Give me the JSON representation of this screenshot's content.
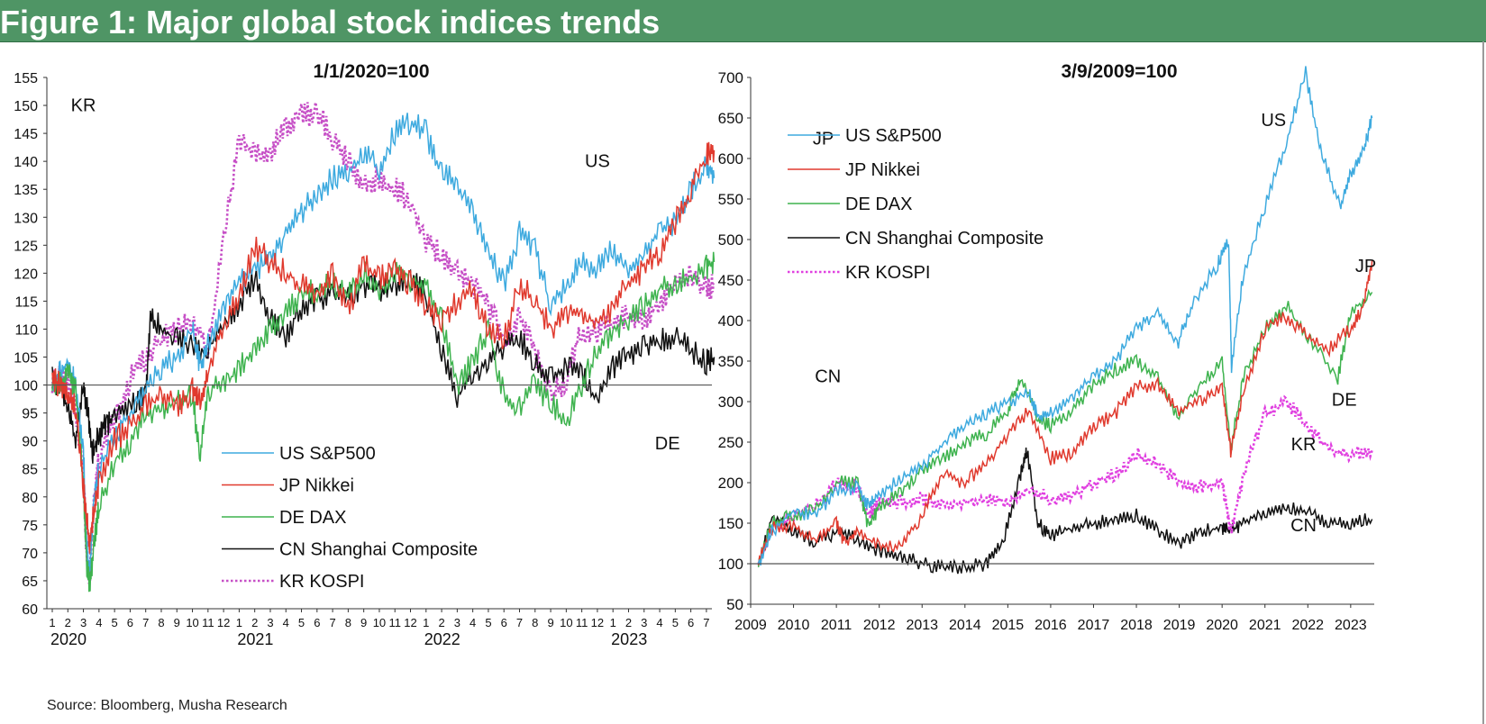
{
  "figure": {
    "title": "Figure 1: Major global stock indices trends",
    "source": "Source: Bloomberg, Musha Research",
    "header_color": "#4f9565"
  },
  "chart_data": [
    {
      "type": "line",
      "title": "1/1/2020=100",
      "xlabel": "",
      "ylabel": "",
      "ylim": [
        60,
        155
      ],
      "y_ticks": [
        60,
        65,
        70,
        75,
        80,
        85,
        90,
        95,
        100,
        105,
        110,
        115,
        120,
        125,
        130,
        135,
        140,
        145,
        150,
        155
      ],
      "x_month_labels": [
        "1",
        "2",
        "3",
        "4",
        "5",
        "6",
        "7",
        "8",
        "9",
        "10",
        "11",
        "12",
        "1",
        "2",
        "3",
        "4",
        "5",
        "6",
        "7",
        "8",
        "9",
        "10",
        "11",
        "12",
        "1",
        "2",
        "3",
        "4",
        "5",
        "6",
        "7",
        "8",
        "9",
        "10",
        "11",
        "12",
        "1",
        "2",
        "3",
        "4",
        "5",
        "6",
        "7"
      ],
      "x_year_labels": [
        {
          "label": "2020",
          "month_index": 0
        },
        {
          "label": "2021",
          "month_index": 12
        },
        {
          "label": "2022",
          "month_index": 24
        },
        {
          "label": "2023",
          "month_index": 36
        }
      ],
      "reference_line": 100,
      "legend_position": "bottom-center",
      "series": [
        {
          "name": "US S&P500",
          "color": "#3eaadf",
          "style": "solid",
          "x": [
            0,
            0.5,
            1,
            1.5,
            2,
            2.2,
            2.4,
            2.7,
            3,
            4,
            5,
            6,
            7,
            8,
            9,
            9.5,
            10,
            11,
            12,
            13,
            14,
            15,
            16,
            17,
            18,
            19,
            20,
            21,
            22,
            23,
            24,
            25,
            26,
            27,
            28,
            29,
            30,
            31,
            32,
            33,
            34,
            35,
            36,
            37,
            38,
            39,
            40,
            41,
            42,
            42.5
          ],
          "y": [
            101,
            102,
            104,
            100,
            88,
            72,
            66,
            80,
            85,
            91,
            95,
            99,
            103,
            105,
            110,
            103,
            107,
            114,
            118,
            121,
            122,
            127,
            131,
            134,
            137,
            138,
            141,
            139,
            145,
            147,
            145,
            138,
            136,
            131,
            124,
            118,
            127,
            124,
            114,
            118,
            122,
            121,
            124,
            121,
            124,
            127,
            129,
            135,
            139,
            137
          ]
        },
        {
          "name": "JP Nikkei",
          "color": "#e03a2e",
          "style": "solid",
          "x": [
            0,
            0.5,
            1,
            1.5,
            2,
            2.2,
            2.4,
            2.7,
            3,
            4,
            5,
            6,
            7,
            8,
            9,
            9.5,
            10,
            11,
            12,
            13,
            14,
            15,
            16,
            17,
            18,
            19,
            20,
            21,
            22,
            23,
            24,
            25,
            26,
            27,
            28,
            29,
            30,
            31,
            32,
            33,
            34,
            35,
            36,
            37,
            38,
            39,
            40,
            41,
            42,
            42.5
          ],
          "y": [
            101,
            100,
            98,
            96,
            82,
            76,
            72,
            78,
            83,
            90,
            93,
            96,
            98,
            96,
            99,
            97,
            102,
            111,
            116,
            125,
            122,
            120,
            118,
            116,
            120,
            113,
            122,
            119,
            121,
            118,
            114,
            112,
            115,
            117,
            110,
            108,
            118,
            115,
            110,
            112,
            113,
            111,
            114,
            118,
            121,
            124,
            129,
            135,
            141,
            142
          ]
        },
        {
          "name": "DE DAX",
          "color": "#3fb34f",
          "style": "solid",
          "x": [
            0,
            0.5,
            1,
            1.5,
            2,
            2.2,
            2.4,
            2.7,
            3,
            4,
            5,
            6,
            7,
            8,
            9,
            9.5,
            10,
            11,
            12,
            13,
            14,
            15,
            16,
            17,
            18,
            19,
            20,
            21,
            22,
            23,
            24,
            25,
            26,
            27,
            28,
            29,
            30,
            31,
            32,
            33,
            34,
            35,
            36,
            37,
            38,
            39,
            40,
            41,
            42,
            42.5
          ],
          "y": [
            101,
            100,
            102,
            99,
            82,
            68,
            64,
            72,
            78,
            86,
            90,
            95,
            96,
            97,
            98,
            87,
            99,
            100,
            103,
            106,
            110,
            113,
            116,
            117,
            118,
            116,
            120,
            117,
            120,
            119,
            117,
            112,
            100,
            104,
            110,
            98,
            96,
            100,
            97,
            93,
            100,
            106,
            110,
            112,
            114,
            117,
            118,
            119,
            121,
            122
          ]
        },
        {
          "name": "CN Shanghai Composite",
          "color": "#111111",
          "style": "solid",
          "x": [
            0,
            0.5,
            1,
            1.5,
            2,
            2.3,
            2.6,
            3,
            3.5,
            4,
            5,
            6,
            6.3,
            7,
            8,
            9,
            10,
            11,
            12,
            13,
            14,
            15,
            16,
            17,
            18,
            19,
            20,
            21,
            22,
            23,
            24,
            25,
            26,
            27,
            28,
            29,
            30,
            31,
            32,
            33,
            34,
            35,
            36,
            37,
            38,
            39,
            40,
            41,
            42,
            42.5
          ],
          "y": [
            101,
            100,
            96,
            90,
            100,
            95,
            88,
            91,
            93,
            95,
            96,
            98,
            112,
            110,
            108,
            107,
            106,
            111,
            114,
            119,
            112,
            109,
            114,
            115,
            117,
            116,
            118,
            117,
            118,
            119,
            116,
            106,
            98,
            102,
            104,
            107,
            108,
            104,
            101,
            103,
            102,
            97,
            103,
            105,
            107,
            108,
            109,
            106,
            104,
            105
          ]
        },
        {
          "name": "KR KOSPI",
          "color": "#c64fc6",
          "style": "dotted",
          "x": [
            0,
            0.5,
            1,
            1.5,
            2,
            2.2,
            2.4,
            2.7,
            3,
            4,
            5,
            6,
            7,
            8,
            9,
            10,
            11,
            12,
            13,
            14,
            15,
            16,
            17,
            18,
            19,
            20,
            21,
            22,
            23,
            24,
            25,
            26,
            27,
            28,
            29,
            30,
            31,
            32,
            33,
            34,
            35,
            36,
            37,
            38,
            39,
            40,
            41,
            42,
            42.5
          ],
          "y": [
            100,
            102,
            100,
            96,
            84,
            70,
            66,
            80,
            87,
            94,
            101,
            105,
            108,
            110,
            112,
            106,
            126,
            144,
            141,
            142,
            146,
            148,
            149,
            144,
            140,
            136,
            137,
            135,
            133,
            126,
            123,
            120,
            118,
            114,
            108,
            112,
            106,
            98,
            101,
            110,
            109,
            111,
            113,
            111,
            115,
            118,
            120,
            117,
            118
          ]
        }
      ]
    },
    {
      "type": "line",
      "title": "3/9/2009=100",
      "xlabel": "",
      "ylabel": "",
      "ylim": [
        50,
        700
      ],
      "y_ticks": [
        50,
        100,
        150,
        200,
        250,
        300,
        350,
        400,
        450,
        500,
        550,
        600,
        650,
        700
      ],
      "x_ticks": [
        "2009",
        "2010",
        "2011",
        "2012",
        "2013",
        "2014",
        "2015",
        "2016",
        "2017",
        "2018",
        "2019",
        "2020",
        "2021",
        "2022",
        "2023"
      ],
      "x_range": [
        2009,
        2023.55
      ],
      "reference_line": 100,
      "legend_position": "top-left",
      "series": [
        {
          "name": "US S&P500",
          "color": "#3eaadf",
          "style": "solid",
          "x": [
            2009.18,
            2009.5,
            2010,
            2010.5,
            2011,
            2011.5,
            2011.75,
            2012,
            2012.5,
            2013,
            2013.5,
            2014,
            2014.5,
            2015,
            2015.5,
            2015.7,
            2016,
            2016.5,
            2017,
            2017.5,
            2018,
            2018.5,
            2018.95,
            2019.3,
            2019.9,
            2020.15,
            2020.22,
            2020.5,
            2021,
            2021.5,
            2021.95,
            2022.3,
            2022.75,
            2023,
            2023.3,
            2023.5
          ],
          "y": [
            100,
            140,
            165,
            160,
            190,
            195,
            170,
            185,
            205,
            220,
            250,
            270,
            285,
            300,
            310,
            280,
            285,
            305,
            330,
            350,
            390,
            410,
            370,
            420,
            470,
            500,
            340,
            460,
            540,
            620,
            705,
            610,
            540,
            580,
            610,
            650
          ]
        },
        {
          "name": "JP Nikkei",
          "color": "#e03a2e",
          "style": "solid",
          "x": [
            2009.18,
            2009.5,
            2010,
            2010.5,
            2011,
            2011.2,
            2011.5,
            2012,
            2012.5,
            2013,
            2013.5,
            2014,
            2014.5,
            2015,
            2015.5,
            2016,
            2016.5,
            2017,
            2017.5,
            2018,
            2018.5,
            2018.95,
            2019.5,
            2020,
            2020.2,
            2020.5,
            2021,
            2021.5,
            2022,
            2022.5,
            2023,
            2023.3,
            2023.5
          ],
          "y": [
            100,
            145,
            145,
            130,
            150,
            125,
            140,
            120,
            120,
            160,
            210,
            200,
            225,
            260,
            290,
            230,
            235,
            270,
            285,
            320,
            320,
            290,
            300,
            320,
            240,
            310,
            390,
            405,
            380,
            365,
            390,
            420,
            475
          ]
        },
        {
          "name": "DE DAX",
          "color": "#3fb34f",
          "style": "solid",
          "x": [
            2009.18,
            2009.5,
            2010,
            2010.5,
            2011,
            2011.5,
            2011.75,
            2012,
            2012.5,
            2013,
            2013.5,
            2014,
            2014.5,
            2015,
            2015.3,
            2015.7,
            2016,
            2016.5,
            2017,
            2017.5,
            2018,
            2018.5,
            2018.95,
            2019.5,
            2020,
            2020.2,
            2020.5,
            2021,
            2021.5,
            2022,
            2022.7,
            2023,
            2023.5
          ],
          "y": [
            100,
            150,
            160,
            165,
            200,
            200,
            145,
            170,
            190,
            215,
            230,
            250,
            260,
            290,
            330,
            280,
            270,
            290,
            320,
            340,
            350,
            330,
            280,
            320,
            350,
            240,
            330,
            390,
            420,
            380,
            330,
            410,
            435
          ]
        },
        {
          "name": "CN Shanghai Composite",
          "color": "#111111",
          "style": "solid",
          "x": [
            2009.18,
            2009.5,
            2010,
            2010.5,
            2011,
            2011.5,
            2012,
            2012.5,
            2013,
            2013.5,
            2014,
            2014.5,
            2014.9,
            2015.3,
            2015.45,
            2015.7,
            2016,
            2016.5,
            2017,
            2017.5,
            2018,
            2018.5,
            2019,
            2019.5,
            2020,
            2020.2,
            2020.5,
            2021,
            2021.5,
            2022,
            2022.5,
            2023,
            2023.5
          ],
          "y": [
            100,
            160,
            140,
            125,
            140,
            130,
            115,
            110,
            100,
            95,
            95,
            100,
            130,
            210,
            240,
            150,
            135,
            145,
            150,
            155,
            160,
            140,
            125,
            140,
            145,
            140,
            150,
            165,
            170,
            165,
            150,
            150,
            155
          ]
        },
        {
          "name": "KR KOSPI",
          "color": "#e040e0",
          "style": "dotted",
          "x": [
            2009.18,
            2009.5,
            2010,
            2010.5,
            2011,
            2011.5,
            2011.75,
            2012,
            2012.5,
            2013,
            2013.5,
            2014,
            2014.5,
            2015,
            2015.5,
            2016,
            2016.5,
            2017,
            2017.5,
            2018,
            2018.5,
            2019,
            2019.5,
            2020,
            2020.2,
            2020.5,
            2021,
            2021.5,
            2022,
            2022.5,
            2023,
            2023.5
          ],
          "y": [
            100,
            145,
            160,
            170,
            200,
            195,
            160,
            175,
            175,
            180,
            170,
            175,
            180,
            175,
            190,
            180,
            185,
            200,
            210,
            235,
            225,
            200,
            195,
            200,
            140,
            210,
            285,
            300,
            270,
            240,
            235,
            240
          ]
        }
      ]
    }
  ],
  "annotations": {
    "left": [
      {
        "text": "KR",
        "x": 2.0,
        "y": 149
      },
      {
        "text": "US",
        "x": 35.0,
        "y": 139
      },
      {
        "text": "JP",
        "x": 49.5,
        "y": 143
      },
      {
        "text": "CN",
        "x": 49.8,
        "y": 100.5
      },
      {
        "text": "DE",
        "x": 39.5,
        "y": 88.5
      }
    ],
    "right": [
      {
        "text": "US",
        "x": 2021.2,
        "y": 640
      },
      {
        "text": "JP",
        "x": 2023.35,
        "y": 460
      },
      {
        "text": "DE",
        "x": 2022.85,
        "y": 295
      },
      {
        "text": "KR",
        "x": 2021.9,
        "y": 240
      },
      {
        "text": "CN",
        "x": 2021.9,
        "y": 140
      }
    ]
  }
}
